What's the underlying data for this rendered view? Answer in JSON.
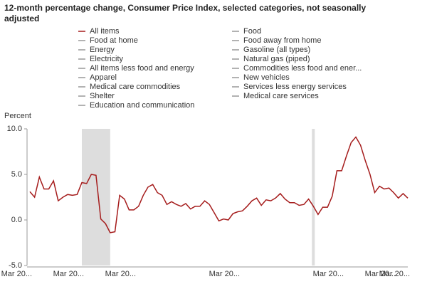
{
  "chart_data": {
    "type": "line",
    "title": "12-month percentage change, Consumer Price Index, selected categories, not seasonally adjusted",
    "ylabel": "Percent",
    "categories": [
      "Mar 20...",
      null,
      null,
      null,
      null,
      null,
      null,
      null,
      null,
      null,
      null,
      "Mar 20...",
      null,
      null,
      null,
      null,
      null,
      null,
      null,
      null,
      null,
      null,
      "Mar 20...",
      null,
      null,
      null,
      null,
      null,
      null,
      null,
      null,
      null,
      null,
      null,
      null,
      null,
      null,
      null,
      null,
      null,
      null,
      null,
      null,
      null,
      "Mar 20...",
      null,
      null,
      null,
      null,
      null,
      null,
      null,
      null,
      null,
      null,
      null,
      null,
      null,
      null,
      null,
      null,
      null,
      null,
      null,
      null,
      null,
      "Mar 20...",
      null,
      null,
      null,
      null,
      null,
      null,
      null,
      null,
      null,
      null,
      "Mar 20...",
      null,
      null,
      "Mar 20..."
    ],
    "series": [
      {
        "name": "All items",
        "color": "#a51c1c",
        "legend_color": "#1f3fa0",
        "values": [
          3.1,
          2.5,
          4.7,
          3.4,
          3.4,
          4.3,
          2.1,
          2.5,
          2.8,
          2.7,
          2.8,
          4.1,
          4.0,
          5.0,
          4.9,
          0.1,
          -0.4,
          -1.4,
          -1.3,
          2.7,
          2.3,
          1.1,
          1.1,
          1.5,
          2.7,
          3.6,
          3.9,
          3.0,
          2.7,
          1.7,
          2.0,
          1.7,
          1.5,
          1.8,
          1.2,
          1.5,
          1.5,
          2.1,
          1.7,
          0.8,
          -0.1,
          0.1,
          0.0,
          0.7,
          0.9,
          1.0,
          1.5,
          2.1,
          2.4,
          1.6,
          2.2,
          2.1,
          2.4,
          2.9,
          2.3,
          1.9,
          1.9,
          1.6,
          1.7,
          2.3,
          1.5,
          0.6,
          1.4,
          1.4,
          2.6,
          5.4,
          5.4,
          7.0,
          8.5,
          9.1,
          8.2,
          6.5,
          5.0,
          3.0,
          3.7,
          3.4,
          3.5,
          3.0,
          2.4,
          2.9,
          2.4
        ]
      }
    ],
    "other_categories": [
      "Food",
      "Food at home",
      "Food away from home",
      "Energy",
      "Gasoline (all types)",
      "Electricity",
      "Natural gas (piped)",
      "All items less food and energy",
      "Commodities less food and ener...",
      "Apparel",
      "New vehicles",
      "Medical care commodities",
      "Services less energy services",
      "Shelter",
      "Medical care services",
      "Education and communication"
    ],
    "other_color": "#999999",
    "shaded_ranges": [
      [
        11,
        17
      ],
      [
        59.7,
        60.3
      ]
    ],
    "shade_color": "#dddddd",
    "ylim": [
      -5,
      10
    ],
    "yticks": [
      {
        "value": -5,
        "label": "-5.0"
      },
      {
        "value": 0,
        "label": "0.0"
      },
      {
        "value": 5,
        "label": "5.0"
      },
      {
        "value": 10,
        "label": "10.0"
      }
    ],
    "grid": false
  }
}
